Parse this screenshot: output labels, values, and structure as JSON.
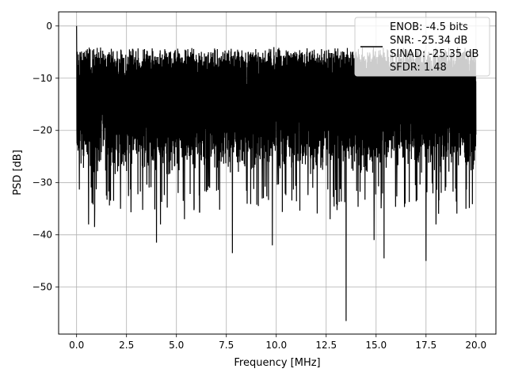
{
  "chart_data": {
    "type": "line",
    "title": "",
    "xlabel": "Frequency [MHz]",
    "ylabel": "PSD [dB]",
    "xlim": [
      -0.9,
      21.0
    ],
    "ylim": [
      -59.0,
      2.7
    ],
    "x_range": [
      0,
      20
    ],
    "grid": true,
    "legend_position": "top-right",
    "x_ticks": [
      0.0,
      2.5,
      5.0,
      7.5,
      10.0,
      12.5,
      15.0,
      17.5,
      20.0
    ],
    "x_tick_labels": [
      "0.0",
      "2.5",
      "5.0",
      "7.5",
      "10.0",
      "12.5",
      "15.0",
      "17.5",
      "20.0"
    ],
    "y_ticks": [
      0,
      -10,
      -20,
      -30,
      -40,
      -50
    ],
    "y_tick_labels": [
      "0",
      "−10",
      "−20",
      "−30",
      "−40",
      "−50"
    ],
    "series": [
      {
        "color": "#000000",
        "noise_floor_top": -7,
        "noise_floor_bottom": -27,
        "peak": {
          "x": 0.0,
          "y": 0.0
        },
        "deep_dips": [
          {
            "x": 0.6,
            "y": -38
          },
          {
            "x": 0.9,
            "y": -38.5
          },
          {
            "x": 2.2,
            "y": -35
          },
          {
            "x": 4.0,
            "y": -41.5
          },
          {
            "x": 4.2,
            "y": -38
          },
          {
            "x": 5.4,
            "y": -37
          },
          {
            "x": 7.8,
            "y": -43.5
          },
          {
            "x": 9.8,
            "y": -42
          },
          {
            "x": 12.7,
            "y": -37
          },
          {
            "x": 13.5,
            "y": -56.5
          },
          {
            "x": 14.9,
            "y": -41
          },
          {
            "x": 15.4,
            "y": -44.5
          },
          {
            "x": 17.5,
            "y": -45
          },
          {
            "x": 18.0,
            "y": -38
          },
          {
            "x": 19.5,
            "y": -35
          }
        ]
      }
    ],
    "legend": {
      "lines": [
        "ENOB: -4.5 bits",
        "SNR: -25.34 dB",
        "SINAD: -25.35 dB",
        "SFDR: 1.48"
      ]
    }
  }
}
